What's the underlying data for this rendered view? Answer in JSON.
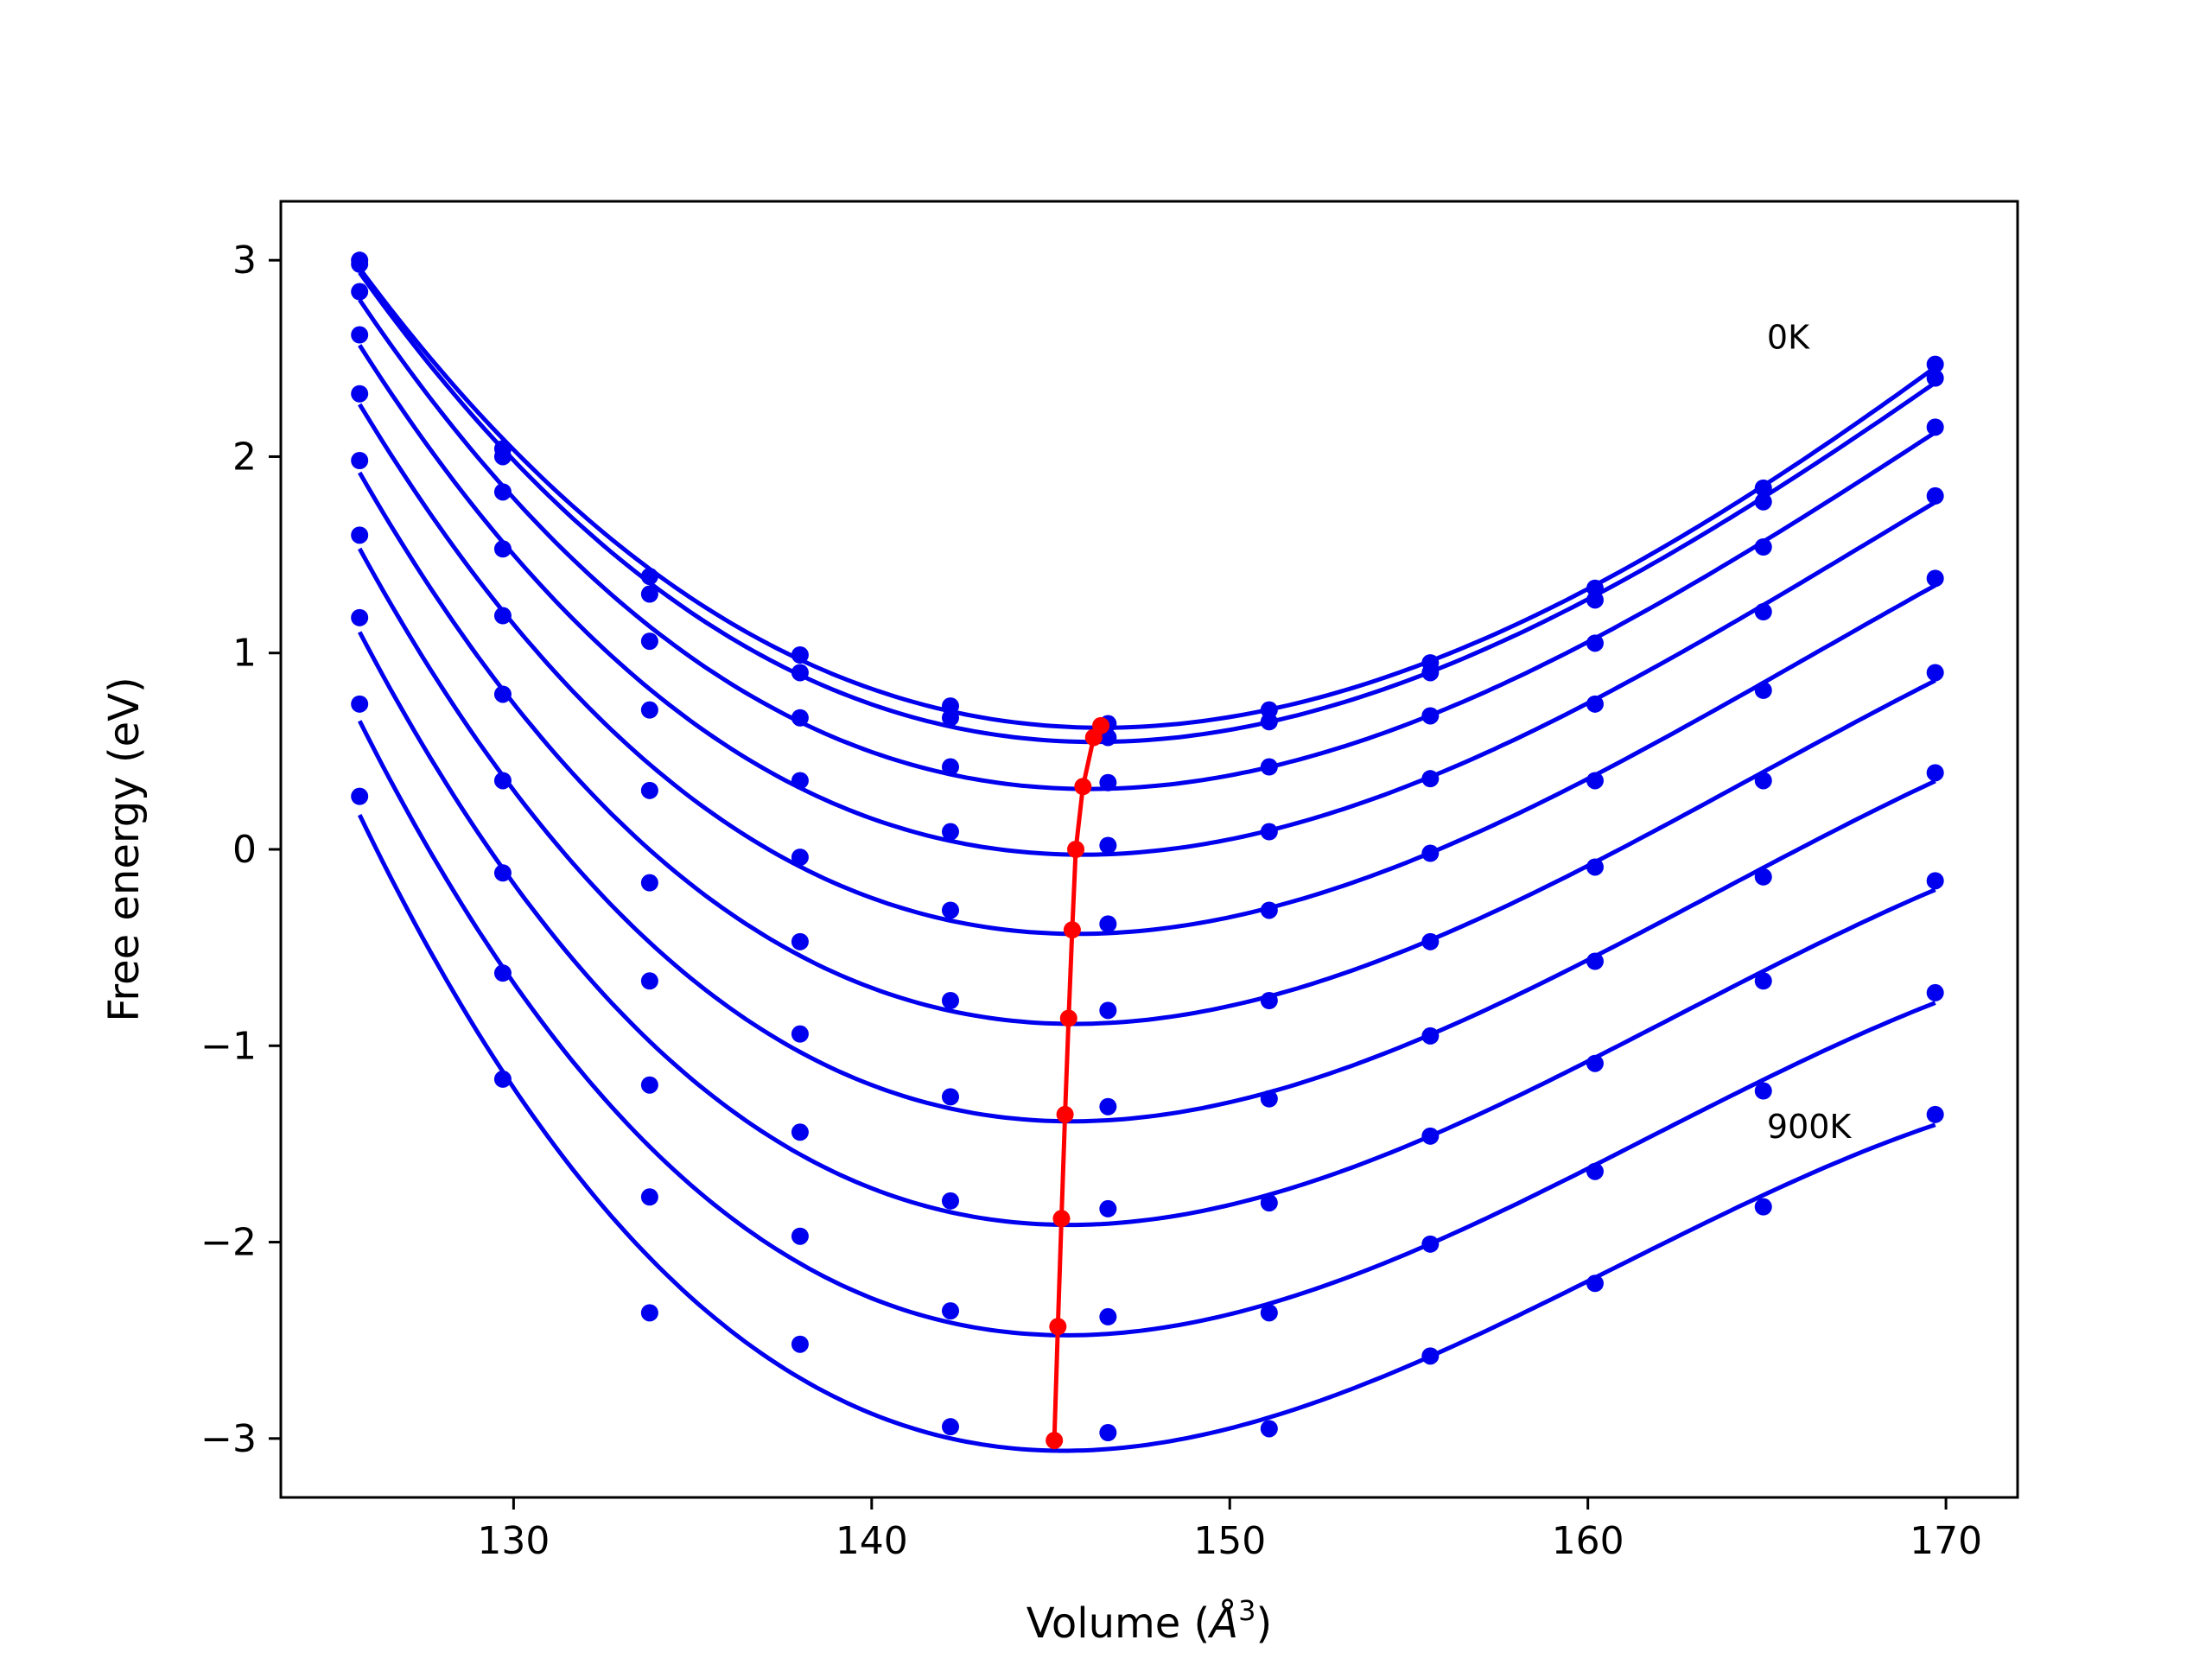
{
  "chart_data": {
    "type": "scatter",
    "xlabel_prefix": "Volume (",
    "xlabel_unit": "Å",
    "xlabel_exp": "3",
    "xlabel_suffix": ")",
    "ylabel": "Free energy (eV)",
    "xlim": [
      123.5,
      172
    ],
    "ylim": [
      -3.3,
      3.3
    ],
    "xticks": [
      130,
      140,
      150,
      160,
      170
    ],
    "yticks": [
      -3,
      -2,
      -1,
      0,
      1,
      2,
      3
    ],
    "grid": false,
    "colors": {
      "curves": "#0000ee",
      "minima": "#ff0000",
      "frame": "#000000"
    },
    "annotations": [
      {
        "text": "0K",
        "x": 165,
        "y": 2.55
      },
      {
        "text": "900K",
        "x": 165,
        "y": -1.47
      }
    ],
    "volumes": [
      125.7,
      129.7,
      133.8,
      138.0,
      142.2,
      146.6,
      151.1,
      155.6,
      160.2,
      164.9,
      169.7
    ],
    "series": [
      {
        "values": [
          3.0,
          2.04,
          1.39,
          0.99,
          0.73,
          0.64,
          0.71,
          0.95,
          1.33,
          1.84,
          2.47
        ]
      },
      {
        "values": [
          2.98,
          2.0,
          1.3,
          0.9,
          0.67,
          0.57,
          0.65,
          0.9,
          1.27,
          1.77,
          2.4
        ]
      },
      {
        "values": [
          2.84,
          1.82,
          1.06,
          0.67,
          0.42,
          0.34,
          0.42,
          0.68,
          1.05,
          1.54,
          2.15
        ]
      },
      {
        "values": [
          2.62,
          1.53,
          0.71,
          0.35,
          0.09,
          0.02,
          0.09,
          0.36,
          0.74,
          1.21,
          1.8
        ]
      },
      {
        "values": [
          2.32,
          1.19,
          0.3,
          -0.04,
          -0.31,
          -0.38,
          -0.31,
          -0.02,
          0.35,
          0.81,
          1.38
        ]
      },
      {
        "values": [
          1.98,
          0.79,
          -0.17,
          -0.47,
          -0.77,
          -0.82,
          -0.77,
          -0.47,
          -0.09,
          0.35,
          0.9
        ]
      },
      {
        "values": [
          1.6,
          0.35,
          -0.67,
          -0.94,
          -1.26,
          -1.31,
          -1.27,
          -0.95,
          -0.57,
          -0.14,
          0.39
        ]
      },
      {
        "values": [
          1.18,
          -0.12,
          -1.2,
          -1.44,
          -1.79,
          -1.83,
          -1.8,
          -1.46,
          -1.09,
          -0.67,
          -0.16
        ]
      },
      {
        "values": [
          0.74,
          -0.63,
          -1.77,
          -1.97,
          -2.35,
          -2.38,
          -2.36,
          -2.01,
          -1.64,
          -1.23,
          -0.73
        ]
      },
      {
        "values": [
          0.27,
          -1.17,
          -2.36,
          -2.52,
          -2.94,
          -2.97,
          -2.95,
          -2.58,
          -2.21,
          -1.82,
          -1.35
        ]
      }
    ],
    "minima": {
      "x": [
        146.4,
        146.2,
        145.9,
        145.7,
        145.6,
        145.5,
        145.4,
        145.3,
        145.2,
        145.1
      ],
      "y": [
        0.63,
        0.57,
        0.32,
        0.0,
        -0.41,
        -0.86,
        -1.35,
        -1.88,
        -2.43,
        -3.01
      ]
    }
  }
}
